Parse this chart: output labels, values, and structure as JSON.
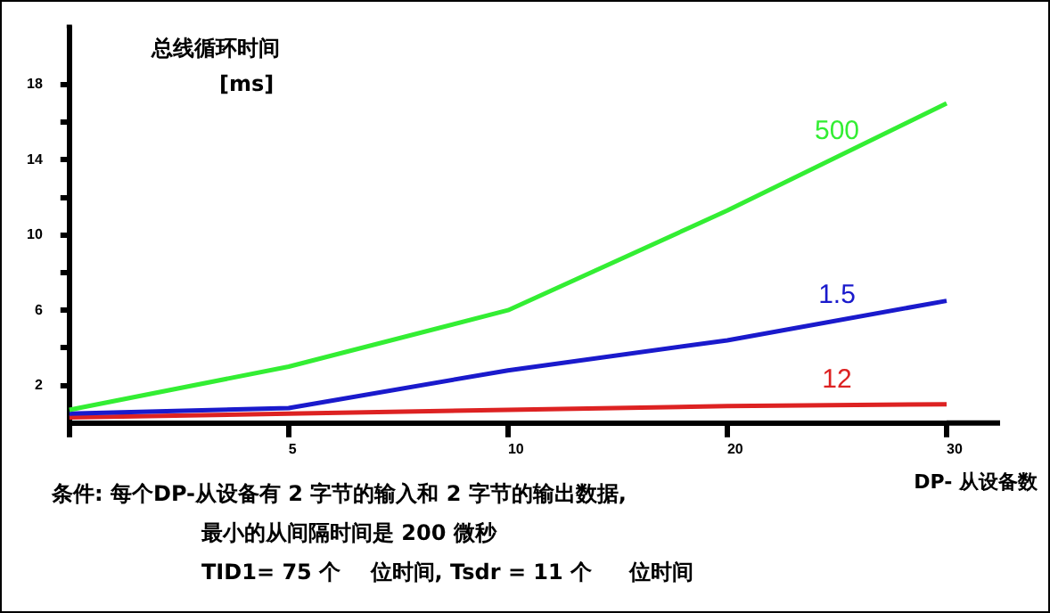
{
  "chart_data": {
    "type": "line",
    "ylabel": "总线循环时间\n[ms]",
    "xlabel": "DP- 从设备数",
    "categories": [
      null,
      "5",
      "10",
      "20",
      "30"
    ],
    "series": [
      {
        "name": "500",
        "color": "#33ee33",
        "values": [
          0.7,
          3.0,
          6.0,
          11.3,
          17.0
        ]
      },
      {
        "name": "1.5",
        "color": "#1a1acc",
        "values": [
          0.5,
          0.8,
          2.8,
          4.4,
          6.5
        ]
      },
      {
        "name": "12",
        "color": "#dd2222",
        "values": [
          0.3,
          0.5,
          0.7,
          0.9,
          1.0
        ]
      }
    ],
    "ylim": [
      0,
      21
    ],
    "yticks": [
      2,
      {
        "value": 4,
        "label": null
      },
      6,
      {
        "value": 8,
        "label": null
      },
      10,
      {
        "value": 12,
        "label": null
      },
      14,
      {
        "value": 16,
        "label": null
      },
      18
    ],
    "grid": false,
    "legend": false,
    "marker": "none",
    "line_style": "solid",
    "annotations": [
      "条件: 每个DP-从设备有 2 字节的输入和 2 字节的输出数据,",
      "最小的从间隔时间是 200 微秒",
      "TID1= 75 个    位时间, Tsdr = 11 个     位时间"
    ]
  }
}
